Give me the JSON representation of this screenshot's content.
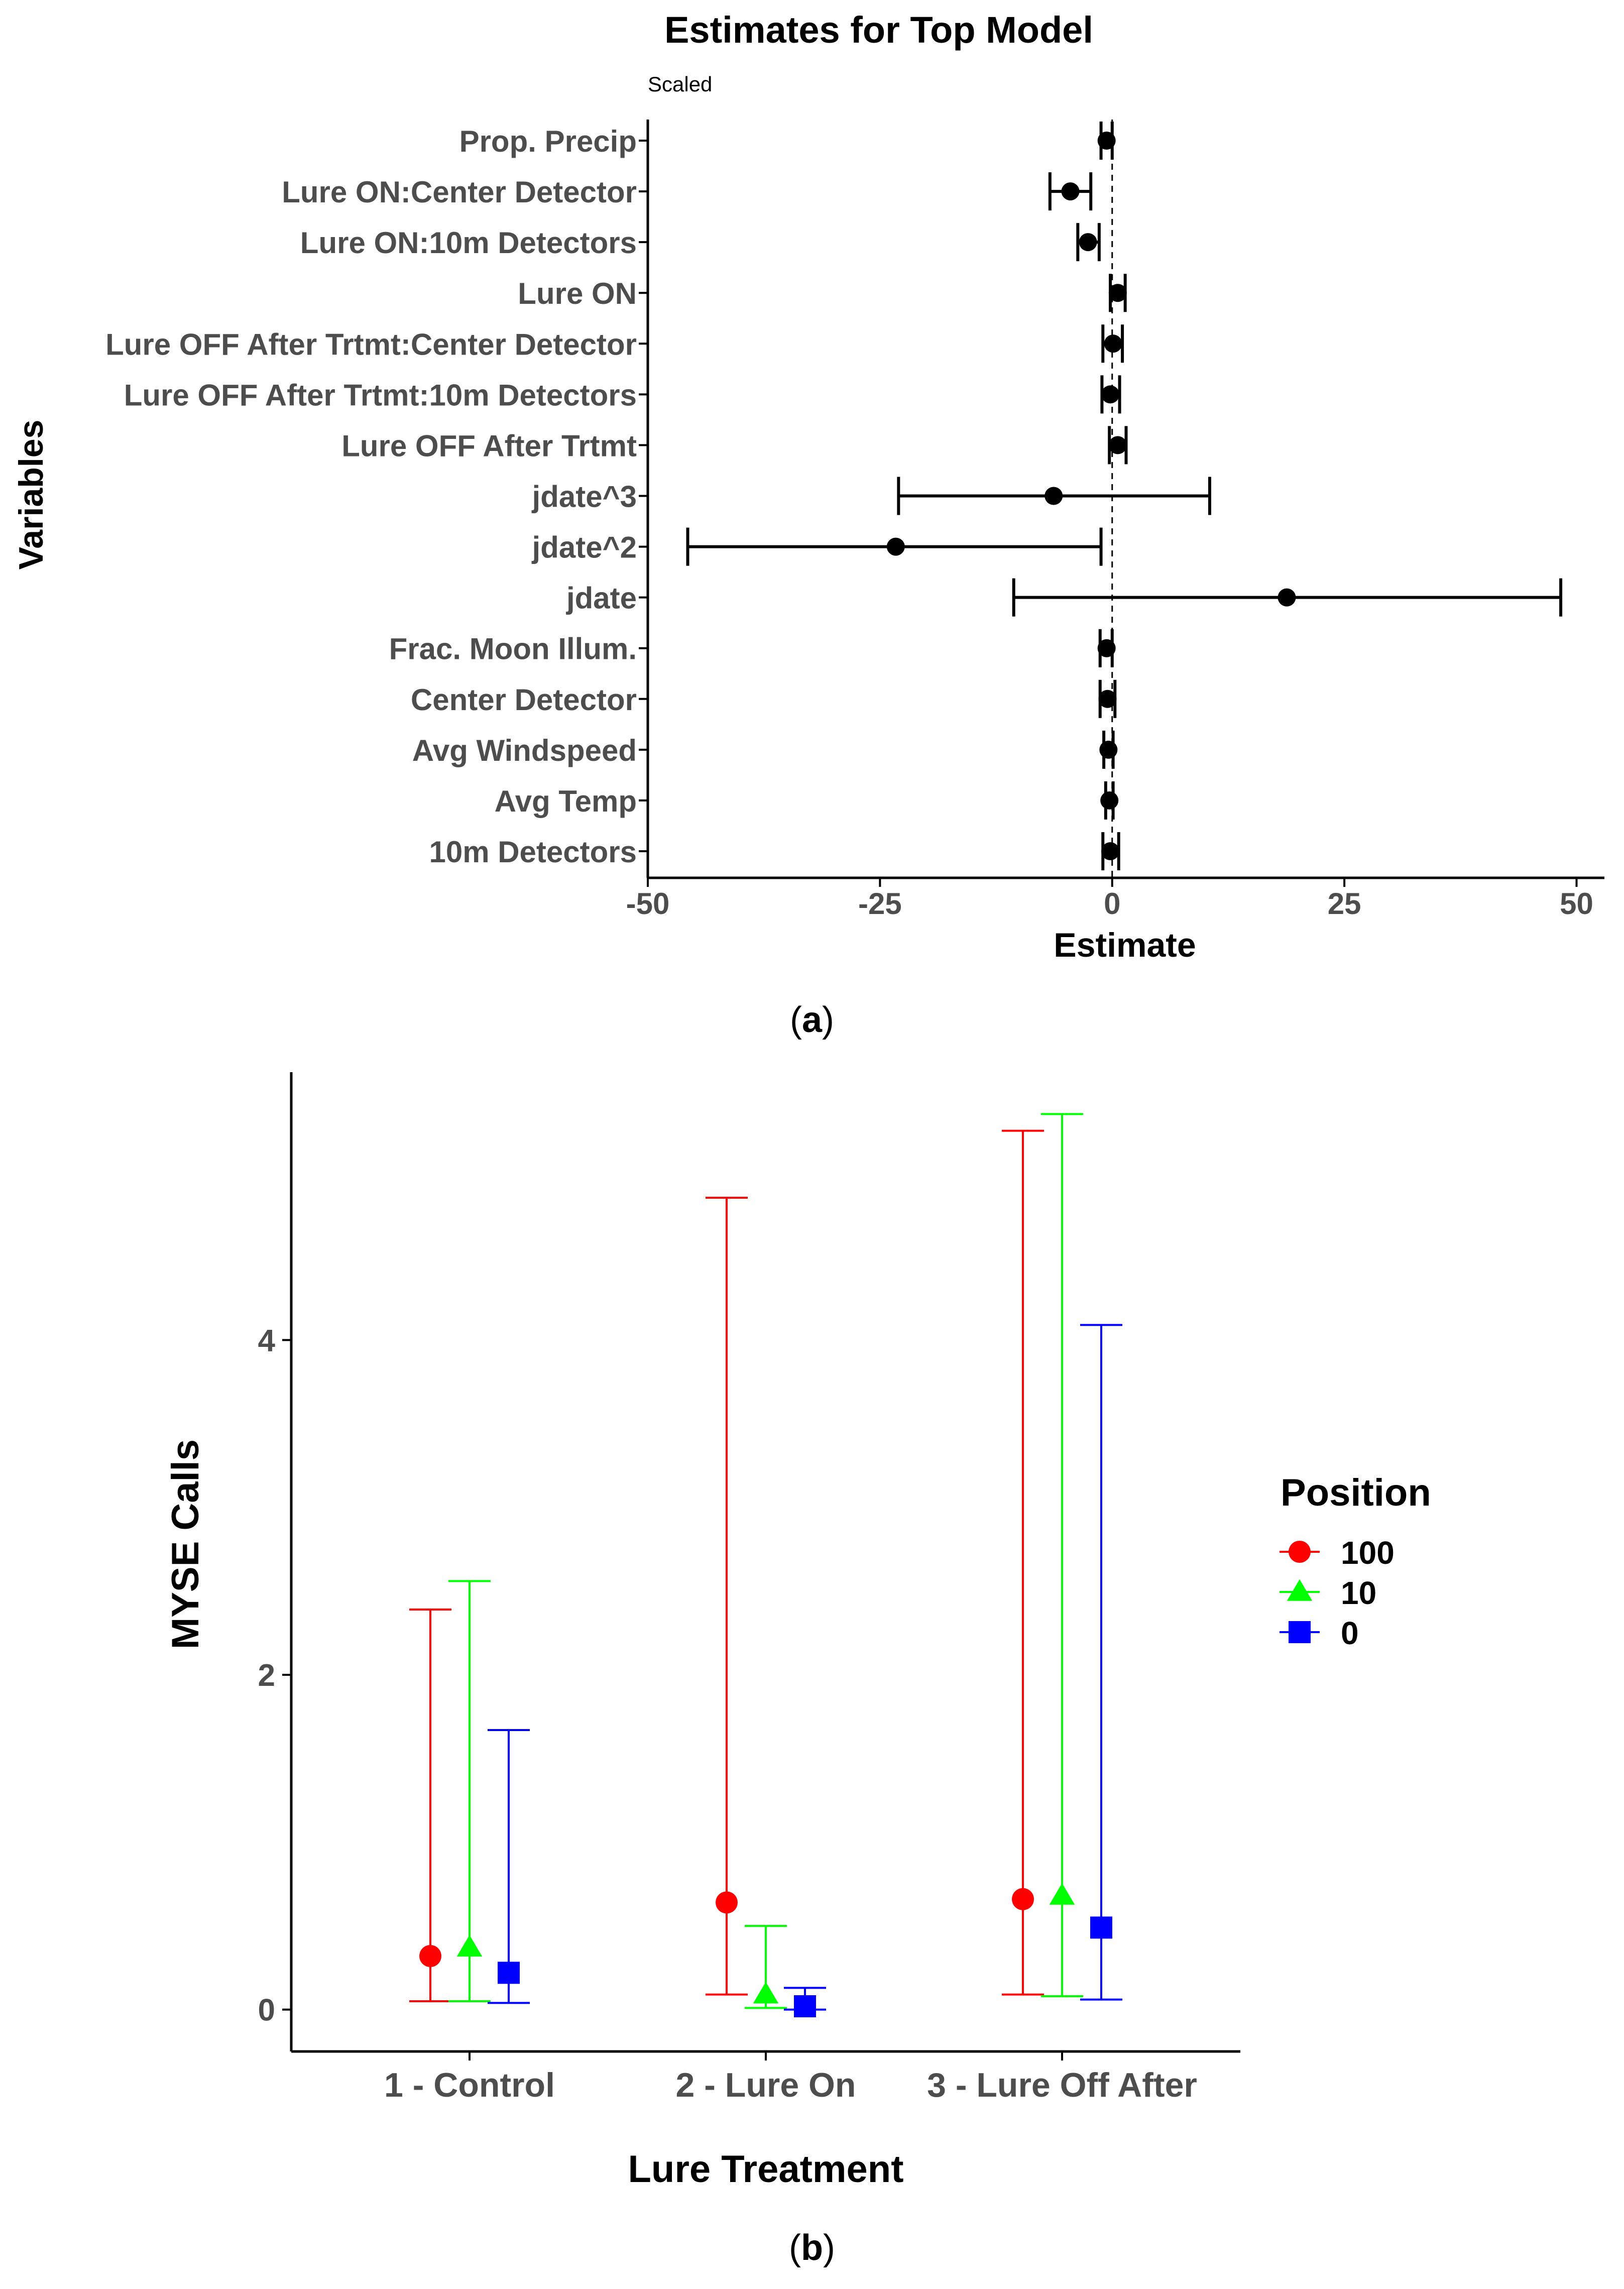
{
  "panel_a_caption_letter": "a",
  "panel_b_caption_letter": "b",
  "colors": {
    "axis": "#000000",
    "text": "#4d4d4d",
    "red": "#ff0000",
    "green": "#00ff00",
    "blue": "#0000ff"
  },
  "chart_data": [
    {
      "type": "forest",
      "title": "Estimates for Top Model",
      "subtitle": "Scaled",
      "xlabel": "Estimate",
      "ylabel": "Variables",
      "xlim": [
        -50,
        53
      ],
      "xticks": [
        -50,
        -25,
        0,
        25,
        50
      ],
      "xtick_labels": [
        "-50",
        "-25",
        "0",
        "25",
        "50"
      ],
      "reference_line": 0,
      "variables": [
        "Prop. Precip",
        "Lure ON:Center Detector",
        "Lure ON:10m Detectors",
        "Lure ON",
        "Lure OFF After Trtmt:Center Detector",
        "Lure OFF After Trtmt:10m Detectors",
        "Lure OFF After Trtmt",
        "jdate^3",
        "jdate^2",
        "jdate",
        "Frac. Moon Illum.",
        "Center Detector",
        "Avg Windspeed",
        "Avg Temp",
        "10m Detectors"
      ],
      "estimates": [
        -0.6,
        -4.5,
        -2.6,
        0.6,
        0.1,
        -0.2,
        0.6,
        -6.3,
        -23.3,
        18.8,
        -0.6,
        -0.5,
        -0.4,
        -0.3,
        -0.2
      ],
      "lower": [
        -1.2,
        -6.7,
        -3.7,
        -0.2,
        -1.0,
        -1.1,
        -0.3,
        -23.0,
        -45.7,
        -10.6,
        -1.3,
        -1.3,
        -0.9,
        -0.7,
        -1.0
      ],
      "upper": [
        0.0,
        -2.3,
        -1.4,
        1.4,
        1.1,
        0.8,
        1.5,
        10.5,
        -1.2,
        48.3,
        0.0,
        0.3,
        0.1,
        0.1,
        0.7
      ]
    },
    {
      "type": "errorbar",
      "xlabel": "Lure Treatment",
      "ylabel": "MYSE Calls",
      "ylim": [
        -0.25,
        5.6
      ],
      "yticks": [
        0,
        2,
        4
      ],
      "ytick_labels": [
        "0",
        "2",
        "4"
      ],
      "categories": [
        "1 - Control",
        "2 - Lure On",
        "3 - Lure Off After"
      ],
      "legend_title": "Position",
      "legend_position": "right",
      "series": [
        {
          "name": "100",
          "color": "#ff0000",
          "marker": "circle",
          "values": [
            0.32,
            0.64,
            0.66
          ],
          "lower": [
            0.05,
            0.09,
            0.09
          ],
          "upper": [
            2.39,
            4.85,
            5.25
          ]
        },
        {
          "name": "10",
          "color": "#00ff00",
          "marker": "triangle",
          "values": [
            0.37,
            0.09,
            0.68
          ],
          "lower": [
            0.05,
            0.01,
            0.08
          ],
          "upper": [
            2.56,
            0.5,
            5.35
          ]
        },
        {
          "name": "0",
          "color": "#0000ff",
          "marker": "square",
          "values": [
            0.22,
            0.02,
            0.49
          ],
          "lower": [
            0.04,
            0.0,
            0.06
          ],
          "upper": [
            1.67,
            0.13,
            4.09
          ]
        }
      ]
    }
  ]
}
